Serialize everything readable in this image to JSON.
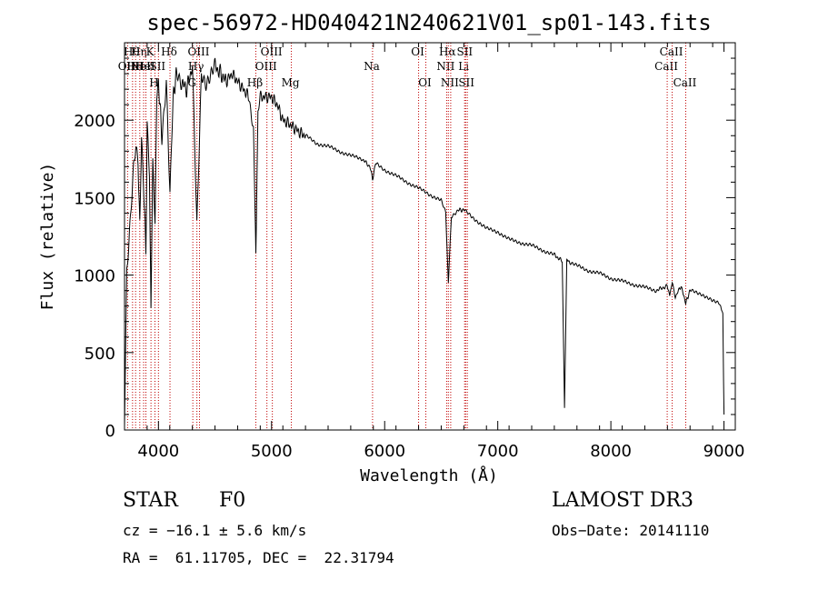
{
  "chart_data": {
    "type": "line",
    "title": "spec-56972-HD040421N240621V01_sp01-143.fits",
    "xlabel": "Wavelength (Å)",
    "ylabel": "Flux (relative)",
    "xlim": [
      3700,
      9100
    ],
    "ylim": [
      0,
      2500
    ],
    "xticks": [
      4000,
      5000,
      6000,
      7000,
      8000,
      9000
    ],
    "xtick_labels": [
      "4000",
      "5000",
      "6000",
      "7000",
      "8000",
      "9000"
    ],
    "yticks": [
      0,
      500,
      1000,
      1500,
      2000
    ],
    "ytick_labels": [
      "0",
      "500",
      "1000",
      "1500",
      "2000"
    ],
    "series": [
      {
        "name": "spectrum",
        "color": "#000000",
        "x": [
          3700,
          3720,
          3740,
          3760,
          3780,
          3800,
          3820,
          3835,
          3850,
          3870,
          3889,
          3900,
          3920,
          3934,
          3950,
          3970,
          3985,
          4000,
          4030,
          4070,
          4102,
          4130,
          4160,
          4200,
          4250,
          4300,
          4340,
          4380,
          4420,
          4460,
          4500,
          4550,
          4600,
          4650,
          4700,
          4750,
          4800,
          4840,
          4861,
          4880,
          4900,
          4950,
          5000,
          5050,
          5100,
          5150,
          5200,
          5250,
          5300,
          5400,
          5500,
          5600,
          5700,
          5800,
          5870,
          5893,
          5920,
          6000,
          6100,
          6200,
          6300,
          6400,
          6500,
          6540,
          6563,
          6590,
          6650,
          6700,
          6800,
          6900,
          7000,
          7100,
          7200,
          7300,
          7400,
          7500,
          7570,
          7590,
          7610,
          7640,
          7700,
          7800,
          7900,
          8000,
          8100,
          8200,
          8300,
          8400,
          8498,
          8520,
          8542,
          8570,
          8620,
          8662,
          8700,
          8800,
          8900,
          8960,
          8990,
          9000
        ],
        "y": [
          50,
          1000,
          1200,
          1450,
          1700,
          1850,
          1750,
          1300,
          1900,
          1550,
          1150,
          1950,
          1650,
          800,
          1700,
          1350,
          2150,
          2250,
          1900,
          2250,
          1500,
          2150,
          2300,
          2250,
          2200,
          2350,
          1300,
          2300,
          2250,
          2300,
          2350,
          2300,
          2250,
          2300,
          2250,
          2200,
          2150,
          1950,
          1150,
          2050,
          2150,
          2150,
          2150,
          2100,
          2000,
          1980,
          1950,
          1920,
          1900,
          1850,
          1830,
          1800,
          1770,
          1750,
          1700,
          1620,
          1720,
          1680,
          1640,
          1600,
          1560,
          1520,
          1480,
          1400,
          950,
          1380,
          1420,
          1420,
          1360,
          1300,
          1280,
          1230,
          1210,
          1190,
          1160,
          1130,
          1090,
          150,
          1100,
          1080,
          1060,
          1030,
          1010,
          980,
          960,
          940,
          920,
          900,
          930,
          870,
          950,
          860,
          930,
          820,
          900,
          880,
          830,
          820,
          750,
          100
        ]
      }
    ],
    "lines": [
      {
        "x": 3727,
        "label": "OII",
        "row": 2
      },
      {
        "x": 3771,
        "label": "Hθ",
        "row": 1
      },
      {
        "x": 3798,
        "label": "Hd",
        "row": 2
      },
      {
        "x": 3835,
        "label": "Hη",
        "row": 1
      },
      {
        "x": 3869,
        "label": "NeII",
        "row": 2
      },
      {
        "x": 3889,
        "label": "HeI",
        "row": 2
      },
      {
        "x": 3934,
        "label": "K",
        "row": 1
      },
      {
        "x": 3969,
        "label": "H",
        "row": 3
      },
      {
        "x": 4000,
        "label": "SII",
        "row": 2
      },
      {
        "x": 4102,
        "label": "Hδ",
        "row": 1
      },
      {
        "x": 4304,
        "label": "G",
        "row": 3
      },
      {
        "x": 4340,
        "label": "Hγ",
        "row": 2
      },
      {
        "x": 4363,
        "label": "OIII",
        "row": 1
      },
      {
        "x": 4861,
        "label": "Hβ",
        "row": 3
      },
      {
        "x": 4959,
        "label": "OIII",
        "row": 2
      },
      {
        "x": 5007,
        "label": "OIII",
        "row": 1
      },
      {
        "x": 5175,
        "label": "Mg",
        "row": 3
      },
      {
        "x": 5893,
        "label": "Na",
        "row": 2
      },
      {
        "x": 6300,
        "label": "OI",
        "row": 1
      },
      {
        "x": 6364,
        "label": "OI",
        "row": 3
      },
      {
        "x": 6548,
        "label": "NII",
        "row": 2
      },
      {
        "x": 6563,
        "label": "Hα",
        "row": 1
      },
      {
        "x": 6584,
        "label": "NII",
        "row": 3
      },
      {
        "x": 6707,
        "label": "Li",
        "row": 2
      },
      {
        "x": 6716,
        "label": "SII",
        "row": 1
      },
      {
        "x": 6731,
        "label": "SII",
        "row": 3
      },
      {
        "x": 8498,
        "label": "CaII",
        "row": 2
      },
      {
        "x": 8542,
        "label": "CaII",
        "row": 1
      },
      {
        "x": 8662,
        "label": "CaII",
        "row": 3
      }
    ],
    "line_color": "#c00000"
  },
  "info": {
    "object_class": "STAR",
    "subclass": "F0",
    "survey": "LAMOST DR3",
    "redshift": "cz = −16.1 ± 5.6 km/s",
    "obs_date": "Obs−Date: 20141110",
    "coords": "RA =  61.11705, DEC =  22.31794"
  }
}
